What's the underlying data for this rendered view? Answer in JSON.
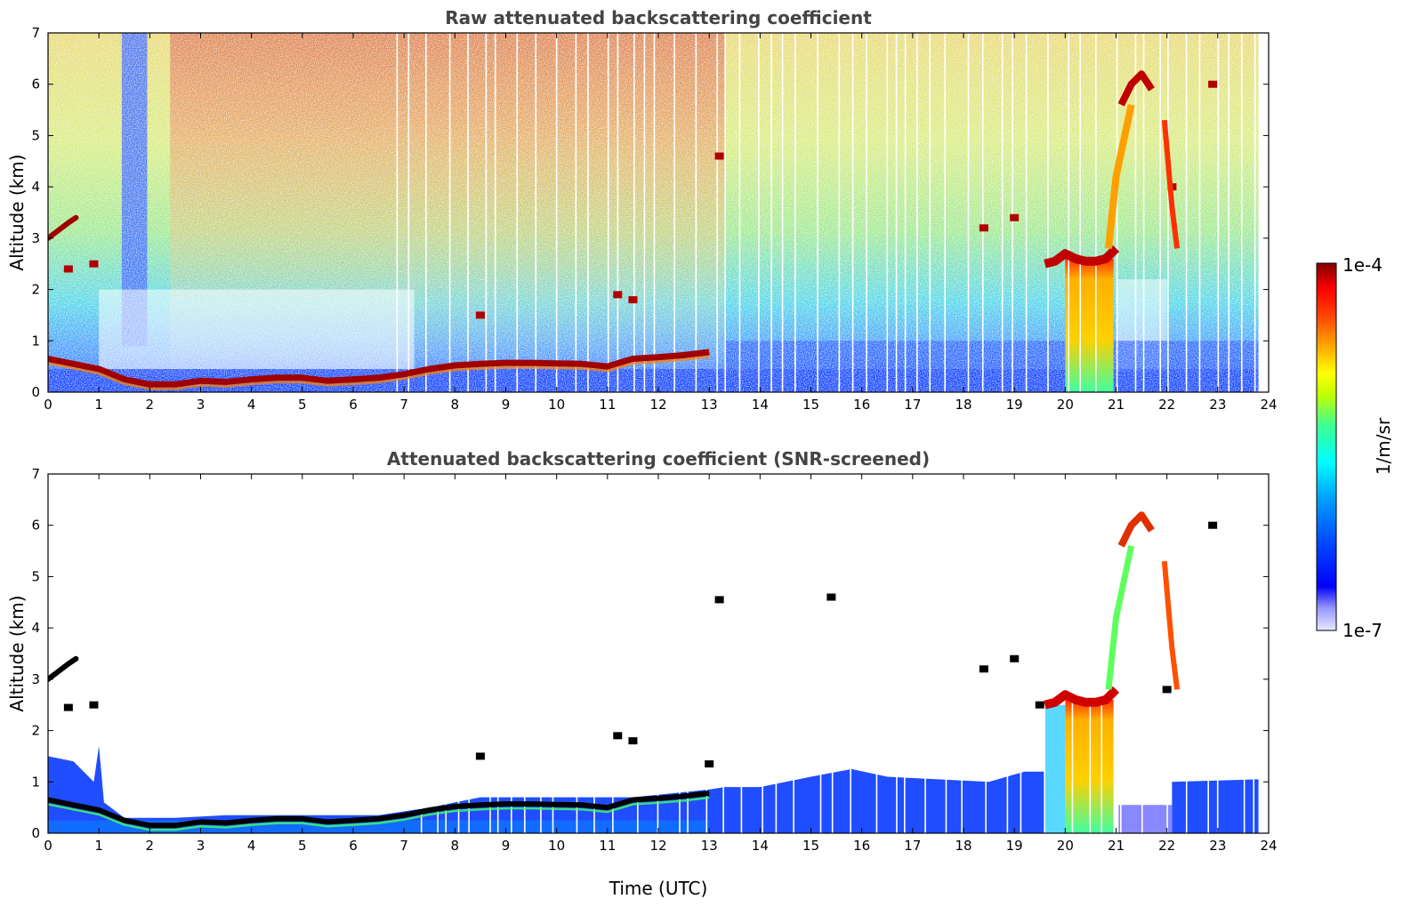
{
  "chart_data": [
    {
      "type": "heatmap",
      "title": "Raw attenuated backscattering coefficient",
      "xlabel": "",
      "ylabel": "Altitude (km)",
      "xlim": [
        0,
        24
      ],
      "ylim": [
        0,
        7
      ],
      "x_ticks": [
        "0",
        "1",
        "2",
        "3",
        "4",
        "5",
        "6",
        "7",
        "8",
        "9",
        "10",
        "11",
        "12",
        "13",
        "14",
        "15",
        "16",
        "17",
        "18",
        "19",
        "20",
        "21",
        "22",
        "23",
        "24"
      ],
      "y_ticks": [
        "0",
        "1",
        "2",
        "3",
        "4",
        "5",
        "6",
        "7"
      ],
      "grid": false,
      "layers": [
        {
          "description": "boundary-layer top",
          "t": [
            0,
            0.5,
            1,
            1.5,
            2,
            2.5,
            3,
            3.5,
            4,
            4.5,
            5,
            5.5,
            6,
            6.5,
            7,
            7.5,
            8,
            8.5,
            9,
            9.5,
            10,
            10.5,
            11,
            11.5,
            12,
            12.5,
            13
          ],
          "z": [
            0.65,
            0.55,
            0.45,
            0.25,
            0.15,
            0.15,
            0.22,
            0.2,
            0.25,
            0.28,
            0.28,
            0.22,
            0.25,
            0.28,
            0.35,
            0.45,
            0.52,
            0.55,
            0.57,
            0.57,
            0.56,
            0.55,
            0.5,
            0.65,
            0.68,
            0.72,
            0.78
          ]
        },
        {
          "description": "elevated layer",
          "t": [
            0,
            0.2,
            0.4,
            0.55
          ],
          "z": [
            3.0,
            3.15,
            3.3,
            3.4
          ]
        },
        {
          "description": "cloud base",
          "t": [
            19.6,
            19.8,
            20.0,
            20.2,
            20.4,
            20.6,
            20.8,
            21.0
          ],
          "z": [
            2.5,
            2.55,
            2.7,
            2.6,
            2.55,
            2.55,
            2.6,
            2.8
          ]
        },
        {
          "description": "high cloud",
          "t": [
            21.1,
            21.3,
            21.5,
            21.7
          ],
          "z": [
            5.6,
            6.0,
            6.2,
            5.9
          ]
        }
      ]
    },
    {
      "type": "heatmap",
      "title": "Attenuated backscattering coefficient (SNR-screened)",
      "xlabel": "Time (UTC)",
      "ylabel": "Altitude (km)",
      "xlim": [
        0,
        24
      ],
      "ylim": [
        0,
        7
      ],
      "x_ticks": [
        "0",
        "1",
        "2",
        "3",
        "4",
        "5",
        "6",
        "7",
        "8",
        "9",
        "10",
        "11",
        "12",
        "13",
        "14",
        "15",
        "16",
        "17",
        "18",
        "19",
        "20",
        "21",
        "22",
        "23",
        "24"
      ],
      "y_ticks": [
        "0",
        "1",
        "2",
        "3",
        "4",
        "5",
        "6",
        "7"
      ],
      "grid": false
    }
  ],
  "colorbar": {
    "label": "1/m/sr",
    "max_label": "1e-4",
    "min_label": "1e-7",
    "scale": "log",
    "range": [
      1e-07,
      0.0001
    ],
    "colors": [
      "#e8e8ff",
      "#9999ff",
      "#0000ff",
      "#0050ff",
      "#00a0ff",
      "#00ffff",
      "#40ff90",
      "#c0ff00",
      "#ffff00",
      "#ffa000",
      "#ff4000",
      "#ff0000",
      "#800000"
    ]
  }
}
